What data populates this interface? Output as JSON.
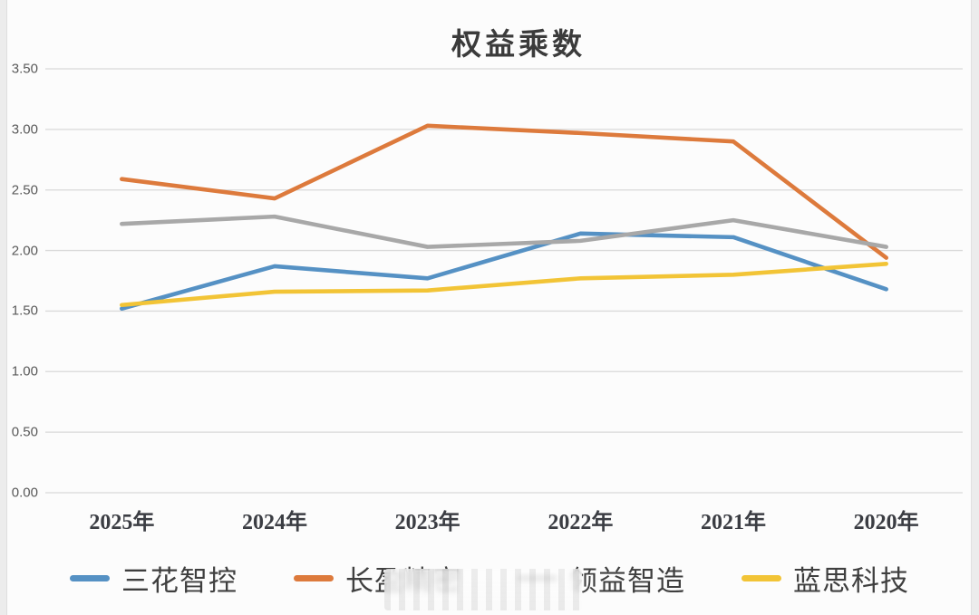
{
  "chart_data": {
    "type": "line",
    "title": "权益乘数",
    "categories": [
      "2025年",
      "2024年",
      "2023年",
      "2022年",
      "2021年",
      "2020年"
    ],
    "series": [
      {
        "name": "三花智控",
        "color": "#5591C4",
        "values": [
          1.52,
          1.87,
          1.77,
          2.14,
          2.11,
          1.68
        ]
      },
      {
        "name": "长盈精密",
        "color": "#DD7A3C",
        "values": [
          2.59,
          2.43,
          3.03,
          2.97,
          2.9,
          1.94
        ]
      },
      {
        "name": "领益智造",
        "color": "#A8A8A8",
        "values": [
          2.22,
          2.28,
          2.03,
          2.08,
          2.25,
          2.03
        ]
      },
      {
        "name": "蓝思科技",
        "color": "#F2C436",
        "values": [
          1.55,
          1.66,
          1.67,
          1.77,
          1.8,
          1.89
        ]
      }
    ],
    "xlabel": "",
    "ylabel": "",
    "ylim": [
      0.0,
      3.5
    ],
    "y_tick_step": 0.5,
    "y_tick_labels": [
      "3.50",
      "3.00",
      "2.50",
      "2.00",
      "1.50",
      "1.00",
      "0.50",
      "0.00"
    ],
    "grid": true,
    "gridline_color": "#D9D9D9",
    "legend_position": "bottom",
    "watermark_note": "blurred-watermark-over-legend"
  }
}
